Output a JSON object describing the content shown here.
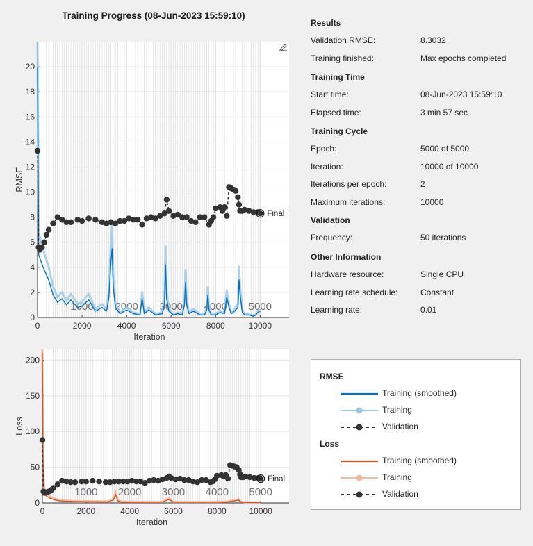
{
  "title": "Training Progress (08-Jun-2023 15:59:10)",
  "info": {
    "sections": [
      {
        "header": "Results",
        "rows": [
          {
            "label": "Validation RMSE:",
            "value": "8.3032"
          },
          {
            "label": "Training finished:",
            "value": "Max epochs completed"
          }
        ]
      },
      {
        "header": "Training Time",
        "rows": [
          {
            "label": "Start time:",
            "value": "08-Jun-2023 15:59:10"
          },
          {
            "label": "Elapsed time:",
            "value": "3 min 57 sec"
          }
        ]
      },
      {
        "header": "Training Cycle",
        "rows": [
          {
            "label": "Epoch:",
            "value": "5000 of 5000"
          },
          {
            "label": "Iteration:",
            "value": "10000 of 10000"
          },
          {
            "label": "Iterations per epoch:",
            "value": "2"
          },
          {
            "label": "Maximum iterations:",
            "value": "10000"
          }
        ]
      },
      {
        "header": "Validation",
        "rows": [
          {
            "label": "Frequency:",
            "value": "50 iterations"
          }
        ]
      },
      {
        "header": "Other Information",
        "rows": [
          {
            "label": "Hardware resource:",
            "value": "Single CPU"
          },
          {
            "label": "Learning rate schedule:",
            "value": "Constant"
          },
          {
            "label": "Learning rate:",
            "value": "0.01"
          }
        ]
      }
    ]
  },
  "legend": {
    "groups": [
      {
        "header": "RMSE",
        "entries": [
          {
            "label": "Training (smoothed)",
            "color": "#0072bd",
            "style": "line"
          },
          {
            "label": "Training",
            "color": "#a0c9e8",
            "style": "line-marker"
          },
          {
            "label": "Validation",
            "color": "#333333",
            "style": "dashed-marker"
          }
        ]
      },
      {
        "header": "Loss",
        "entries": [
          {
            "label": "Training (smoothed)",
            "color": "#d95319",
            "style": "line"
          },
          {
            "label": "Training",
            "color": "#f2b9a2",
            "style": "line-marker"
          },
          {
            "label": "Validation",
            "color": "#333333",
            "style": "dashed-marker"
          }
        ]
      }
    ]
  },
  "toolbar_icon": "edit-axes-icon",
  "chart_data": [
    {
      "type": "line",
      "title": "",
      "xlabel": "Iteration",
      "ylabel": "RMSE",
      "xlim": [
        0,
        11300
      ],
      "ylim": [
        0,
        22
      ],
      "xticks": [
        "0",
        "2000",
        "4000",
        "6000",
        "8000",
        "10000"
      ],
      "yticks": [
        "0",
        "2",
        "4",
        "6",
        "8",
        "10",
        "12",
        "14",
        "16",
        "18",
        "20"
      ],
      "epoch_labels": [
        {
          "label": "1000",
          "x": 2000
        },
        {
          "label": "2000",
          "x": 4000
        },
        {
          "label": "3000",
          "x": 6000
        },
        {
          "label": "4000",
          "x": 8000
        },
        {
          "label": "5000",
          "x": 10000
        }
      ],
      "final_label": "Final",
      "final_value": 8.3,
      "series": [
        {
          "name": "Training (smoothed)",
          "color": "#0072bd",
          "x": [
            0,
            50,
            150,
            300,
            500,
            700,
            900,
            1100,
            1300,
            1500,
            1800,
            2000,
            2300,
            2600,
            2900,
            3100,
            3200,
            3300,
            3350,
            3400,
            3500,
            3700,
            4000,
            4300,
            4600,
            4700,
            4800,
            5000,
            5300,
            5600,
            5700,
            5750,
            5800,
            5900,
            6100,
            6300,
            6500,
            6600,
            6650,
            6700,
            6800,
            7000,
            7300,
            7500,
            7600,
            7650,
            7700,
            7800,
            8000,
            8200,
            8400,
            8500,
            8600,
            8700,
            8800,
            9000,
            9050,
            9100,
            9200,
            9300,
            9500,
            9700,
            9800,
            9900,
            10000
          ],
          "y": [
            20,
            5,
            4.5,
            3.8,
            3,
            1.8,
            1.2,
            1.5,
            1,
            1.4,
            0.8,
            0.9,
            1.4,
            0.5,
            0.8,
            0.5,
            1.5,
            4.5,
            5.5,
            2.5,
            0.8,
            0.3,
            0.6,
            0.3,
            0.2,
            1.5,
            0.3,
            0.6,
            0.2,
            0.3,
            1.0,
            4.2,
            1.5,
            0.5,
            0.2,
            0.3,
            0.2,
            1.0,
            2.8,
            1.0,
            0.3,
            0.5,
            0.2,
            0.2,
            0.6,
            1.8,
            0.6,
            0.2,
            0.2,
            0.4,
            0.3,
            1.6,
            0.8,
            0.3,
            0.4,
            0.8,
            3.0,
            1.8,
            0.4,
            0.2,
            0.2,
            0.1,
            0.2,
            0.4,
            0.5
          ]
        },
        {
          "name": "Validation",
          "color": "#333333",
          "x": [
            0,
            50,
            100,
            200,
            300,
            400,
            500,
            700,
            900,
            1100,
            1300,
            1500,
            1800,
            2000,
            2300,
            2600,
            2900,
            3100,
            3300,
            3500,
            3700,
            3900,
            4100,
            4300,
            4500,
            4700,
            4900,
            5100,
            5300,
            5500,
            5700,
            5800,
            5900,
            6100,
            6300,
            6500,
            6700,
            6900,
            7100,
            7300,
            7500,
            7700,
            7800,
            7900,
            8000,
            8200,
            8300,
            8400,
            8500,
            8600,
            8700,
            8800,
            8900,
            9000,
            9050,
            9100,
            9200,
            9300,
            9500,
            9700,
            9900,
            10000
          ],
          "y": [
            13.3,
            5.6,
            5.4,
            5.6,
            6.0,
            6.6,
            7.0,
            7.5,
            8.0,
            7.8,
            7.6,
            7.6,
            7.8,
            7.7,
            7.9,
            7.8,
            7.6,
            7.5,
            7.6,
            7.5,
            7.7,
            7.7,
            7.9,
            7.8,
            7.8,
            7.4,
            7.9,
            8.0,
            7.9,
            8.1,
            8.3,
            9.4,
            8.5,
            8.1,
            8.2,
            8.0,
            8.0,
            7.7,
            7.6,
            8.0,
            8.0,
            7.4,
            7.7,
            8.0,
            8.7,
            8.8,
            8.5,
            8.8,
            8.1,
            10.4,
            10.3,
            10.2,
            10.1,
            9.6,
            9.0,
            8.5,
            8.5,
            8.6,
            8.5,
            8.4,
            8.4,
            8.3
          ]
        }
      ]
    },
    {
      "type": "line",
      "title": "",
      "xlabel": "Iteration",
      "ylabel": "Loss",
      "xlim": [
        0,
        11300
      ],
      "ylim": [
        0,
        215
      ],
      "xticks": [
        "0",
        "2000",
        "4000",
        "6000",
        "8000",
        "10000"
      ],
      "yticks": [
        "0",
        "50",
        "100",
        "150",
        "200"
      ],
      "epoch_labels": [
        {
          "label": "1000",
          "x": 2000
        },
        {
          "label": "2000",
          "x": 4000
        },
        {
          "label": "3000",
          "x": 6000
        },
        {
          "label": "4000",
          "x": 8000
        },
        {
          "label": "5000",
          "x": 10000
        }
      ],
      "final_label": "Final",
      "final_value": 34,
      "series": [
        {
          "name": "Training (smoothed)",
          "color": "#d95319",
          "x": [
            0,
            30,
            60,
            100,
            200,
            400,
            600,
            800,
            1000,
            1500,
            2000,
            2500,
            3000,
            3250,
            3350,
            3450,
            3600,
            4000,
            4500,
            5000,
            5500,
            5800,
            6000,
            6500,
            7000,
            7500,
            8000,
            8500,
            9000,
            9050,
            9200,
            9500,
            10000
          ],
          "y": [
            210,
            60,
            25,
            12,
            9,
            6,
            4,
            3,
            2.5,
            2,
            1.8,
            1.6,
            1.5,
            4,
            12,
            3,
            1.5,
            1.2,
            1.2,
            1.1,
            1.2,
            5,
            1,
            1,
            1,
            1,
            1,
            1.5,
            4,
            2,
            0.8,
            0.6,
            0.5
          ]
        },
        {
          "name": "Validation",
          "color": "#333333",
          "x": [
            0,
            50,
            100,
            200,
            300,
            400,
            500,
            700,
            900,
            1100,
            1300,
            1500,
            1800,
            2000,
            2300,
            2600,
            2900,
            3100,
            3300,
            3500,
            3700,
            3900,
            4100,
            4300,
            4500,
            4700,
            4900,
            5100,
            5300,
            5500,
            5700,
            5800,
            5900,
            6100,
            6300,
            6500,
            6700,
            6900,
            7100,
            7300,
            7500,
            7700,
            7800,
            7900,
            8000,
            8200,
            8300,
            8400,
            8500,
            8600,
            8700,
            8800,
            8900,
            9000,
            9050,
            9100,
            9200,
            9300,
            9500,
            9700,
            9900,
            10000
          ],
          "y": [
            88,
            16,
            14,
            15,
            16,
            18,
            21,
            26,
            31,
            30,
            29,
            29,
            30,
            30,
            31,
            30,
            29,
            29,
            30,
            30,
            30,
            30,
            31,
            30,
            30,
            28,
            31,
            32,
            31,
            33,
            35,
            37,
            35,
            33,
            34,
            32,
            32,
            30,
            29,
            32,
            32,
            29,
            30,
            33,
            38,
            39,
            37,
            39,
            34,
            53,
            52,
            51,
            50,
            46,
            40,
            36,
            36,
            37,
            36,
            35,
            35,
            34
          ]
        }
      ]
    }
  ]
}
